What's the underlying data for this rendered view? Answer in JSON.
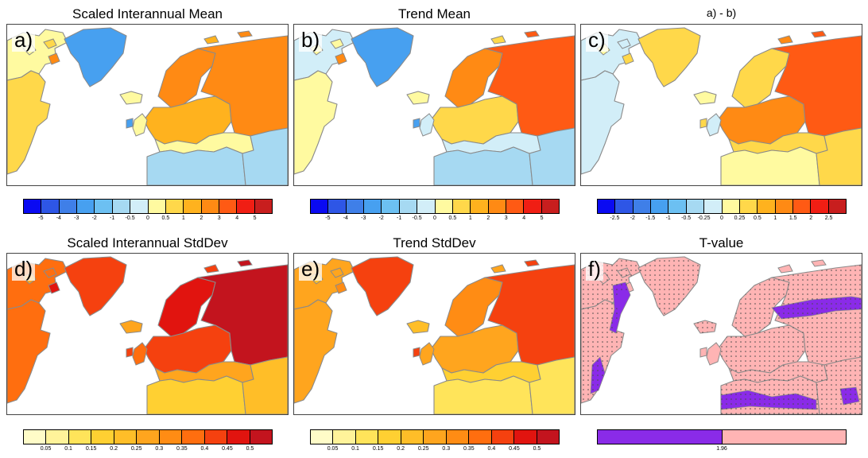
{
  "colors": {
    "ocean": "#ffffff",
    "coast": "#8a8a8a",
    "border": "#444444",
    "stipple": "#4a4a4a"
  },
  "chart_data": [
    {
      "id": "a",
      "type": "heatmap",
      "label": "a)",
      "title": "Scaled Interannual Mean",
      "colorbar": {
        "ticks": [
          "-5",
          "-4",
          "-3",
          "-2",
          "-1",
          "-0.5",
          "0",
          "0.5",
          "1",
          "2",
          "3",
          "4",
          "5"
        ],
        "colors": [
          "#0a0af2",
          "#2e56e6",
          "#3f7fe8",
          "#47a0f0",
          "#6cc0f2",
          "#a6d9f2",
          "#d2eef8",
          "#fffaa0",
          "#ffd84a",
          "#ffb21e",
          "#ff8a14",
          "#ff5a14",
          "#f01e14",
          "#c81e1e"
        ]
      },
      "regions": [
        {
          "name": "canada-arctic",
          "level": 7
        },
        {
          "name": "greenland",
          "level": 3
        },
        {
          "name": "iceland",
          "level": 7
        },
        {
          "name": "north-america",
          "level": 8
        },
        {
          "name": "scandinavia",
          "level": 10
        },
        {
          "name": "europe",
          "level": 9
        },
        {
          "name": "russia",
          "level": 10
        },
        {
          "name": "mediterranean-rim",
          "level": 7
        },
        {
          "name": "north-africa",
          "level": 5
        },
        {
          "name": "middle-east",
          "level": 5
        }
      ]
    },
    {
      "id": "b",
      "type": "heatmap",
      "label": "b)",
      "title": "Trend Mean",
      "colorbar": {
        "ticks": [
          "-5",
          "-4",
          "-3",
          "-2",
          "-1",
          "-0.5",
          "0",
          "0.5",
          "1",
          "2",
          "3",
          "4",
          "5"
        ],
        "colors": [
          "#0a0af2",
          "#2e56e6",
          "#3f7fe8",
          "#47a0f0",
          "#6cc0f2",
          "#a6d9f2",
          "#d2eef8",
          "#fffaa0",
          "#ffd84a",
          "#ffb21e",
          "#ff8a14",
          "#ff5a14",
          "#f01e14",
          "#c81e1e"
        ]
      },
      "regions": [
        {
          "name": "canada-arctic",
          "level": 6
        },
        {
          "name": "greenland",
          "level": 3
        },
        {
          "name": "iceland",
          "level": 7
        },
        {
          "name": "north-america",
          "level": 7
        },
        {
          "name": "scandinavia",
          "level": 10
        },
        {
          "name": "europe",
          "level": 8
        },
        {
          "name": "russia",
          "level": 11
        },
        {
          "name": "mediterranean-rim",
          "level": 6
        },
        {
          "name": "north-africa",
          "level": 5
        },
        {
          "name": "middle-east",
          "level": 5
        }
      ]
    },
    {
      "id": "c",
      "type": "heatmap",
      "label": "c)",
      "title": "a) - b)",
      "colorbar": {
        "ticks": [
          "-2.5",
          "-2",
          "-1.5",
          "-1",
          "-0.5",
          "-0.25",
          "0",
          "0.25",
          "0.5",
          "1",
          "1.5",
          "2",
          "2.5"
        ],
        "colors": [
          "#0a0af2",
          "#2e56e6",
          "#3f7fe8",
          "#47a0f0",
          "#6cc0f2",
          "#a6d9f2",
          "#d2eef8",
          "#fffaa0",
          "#ffd84a",
          "#ffb21e",
          "#ff8a14",
          "#ff5a14",
          "#f01e14",
          "#c81e1e"
        ]
      },
      "regions": [
        {
          "name": "canada-arctic",
          "level": 6
        },
        {
          "name": "greenland",
          "level": 8
        },
        {
          "name": "iceland",
          "level": 7
        },
        {
          "name": "north-america",
          "level": 6
        },
        {
          "name": "scandinavia",
          "level": 8
        },
        {
          "name": "europe",
          "level": 10
        },
        {
          "name": "russia",
          "level": 11
        },
        {
          "name": "mediterranean-rim",
          "level": 8
        },
        {
          "name": "north-africa",
          "level": 7
        },
        {
          "name": "middle-east",
          "level": 8
        }
      ]
    },
    {
      "id": "d",
      "type": "heatmap",
      "label": "d)",
      "title": "Scaled Interannual StdDev",
      "colorbar": {
        "ticks": [
          "0.05",
          "0.1",
          "0.15",
          "0.2",
          "0.25",
          "0.3",
          "0.35",
          "0.4",
          "0.45",
          "0.5"
        ],
        "colors": [
          "#fffcc8",
          "#fff39a",
          "#ffe45a",
          "#ffd032",
          "#ffbe28",
          "#ffa51e",
          "#ff8c14",
          "#ff6e0f",
          "#f5410f",
          "#e1140f",
          "#c3141e"
        ]
      },
      "regions": [
        {
          "name": "canada-arctic",
          "level": 7
        },
        {
          "name": "greenland",
          "level": 8
        },
        {
          "name": "iceland",
          "level": 5
        },
        {
          "name": "north-america",
          "level": 7
        },
        {
          "name": "scandinavia",
          "level": 9
        },
        {
          "name": "europe",
          "level": 8
        },
        {
          "name": "russia",
          "level": 10
        },
        {
          "name": "mediterranean-rim",
          "level": 5
        },
        {
          "name": "north-africa",
          "level": 3
        },
        {
          "name": "middle-east",
          "level": 4
        }
      ]
    },
    {
      "id": "e",
      "type": "heatmap",
      "label": "e)",
      "title": "Trend StdDev",
      "colorbar": {
        "ticks": [
          "0.05",
          "0.1",
          "0.15",
          "0.2",
          "0.25",
          "0.3",
          "0.35",
          "0.4",
          "0.45",
          "0.5"
        ],
        "colors": [
          "#fffcc8",
          "#fff39a",
          "#ffe45a",
          "#ffd032",
          "#ffbe28",
          "#ffa51e",
          "#ff8c14",
          "#ff6e0f",
          "#f5410f",
          "#e1140f",
          "#c3141e"
        ]
      },
      "regions": [
        {
          "name": "canada-arctic",
          "level": 5
        },
        {
          "name": "greenland",
          "level": 8
        },
        {
          "name": "iceland",
          "level": 4
        },
        {
          "name": "north-america",
          "level": 5
        },
        {
          "name": "scandinavia",
          "level": 6
        },
        {
          "name": "europe",
          "level": 5
        },
        {
          "name": "russia",
          "level": 8
        },
        {
          "name": "mediterranean-rim",
          "level": 3
        },
        {
          "name": "north-africa",
          "level": 2
        },
        {
          "name": "middle-east",
          "level": 2
        }
      ]
    },
    {
      "id": "f",
      "type": "heatmap",
      "label": "f)",
      "title": "T-value",
      "stippled": true,
      "colorbar": {
        "ticks": [
          "1.96"
        ],
        "colors": [
          "#8a2be8",
          "#ffb4b4"
        ]
      },
      "regions": [
        {
          "name": "canada-arctic",
          "level": 1
        },
        {
          "name": "greenland",
          "level": 1
        },
        {
          "name": "iceland",
          "level": 1
        },
        {
          "name": "north-america",
          "level": 1
        },
        {
          "name": "scandinavia",
          "level": 1
        },
        {
          "name": "europe",
          "level": 1
        },
        {
          "name": "russia",
          "level": 1
        },
        {
          "name": "mediterranean-rim",
          "level": 1
        },
        {
          "name": "north-africa",
          "level": 1
        },
        {
          "name": "middle-east",
          "level": 1
        }
      ],
      "insignificant_zones": [
        "baffin-band",
        "us-east-coast",
        "siberia-band",
        "sahara-band",
        "arabia-patch"
      ]
    }
  ]
}
